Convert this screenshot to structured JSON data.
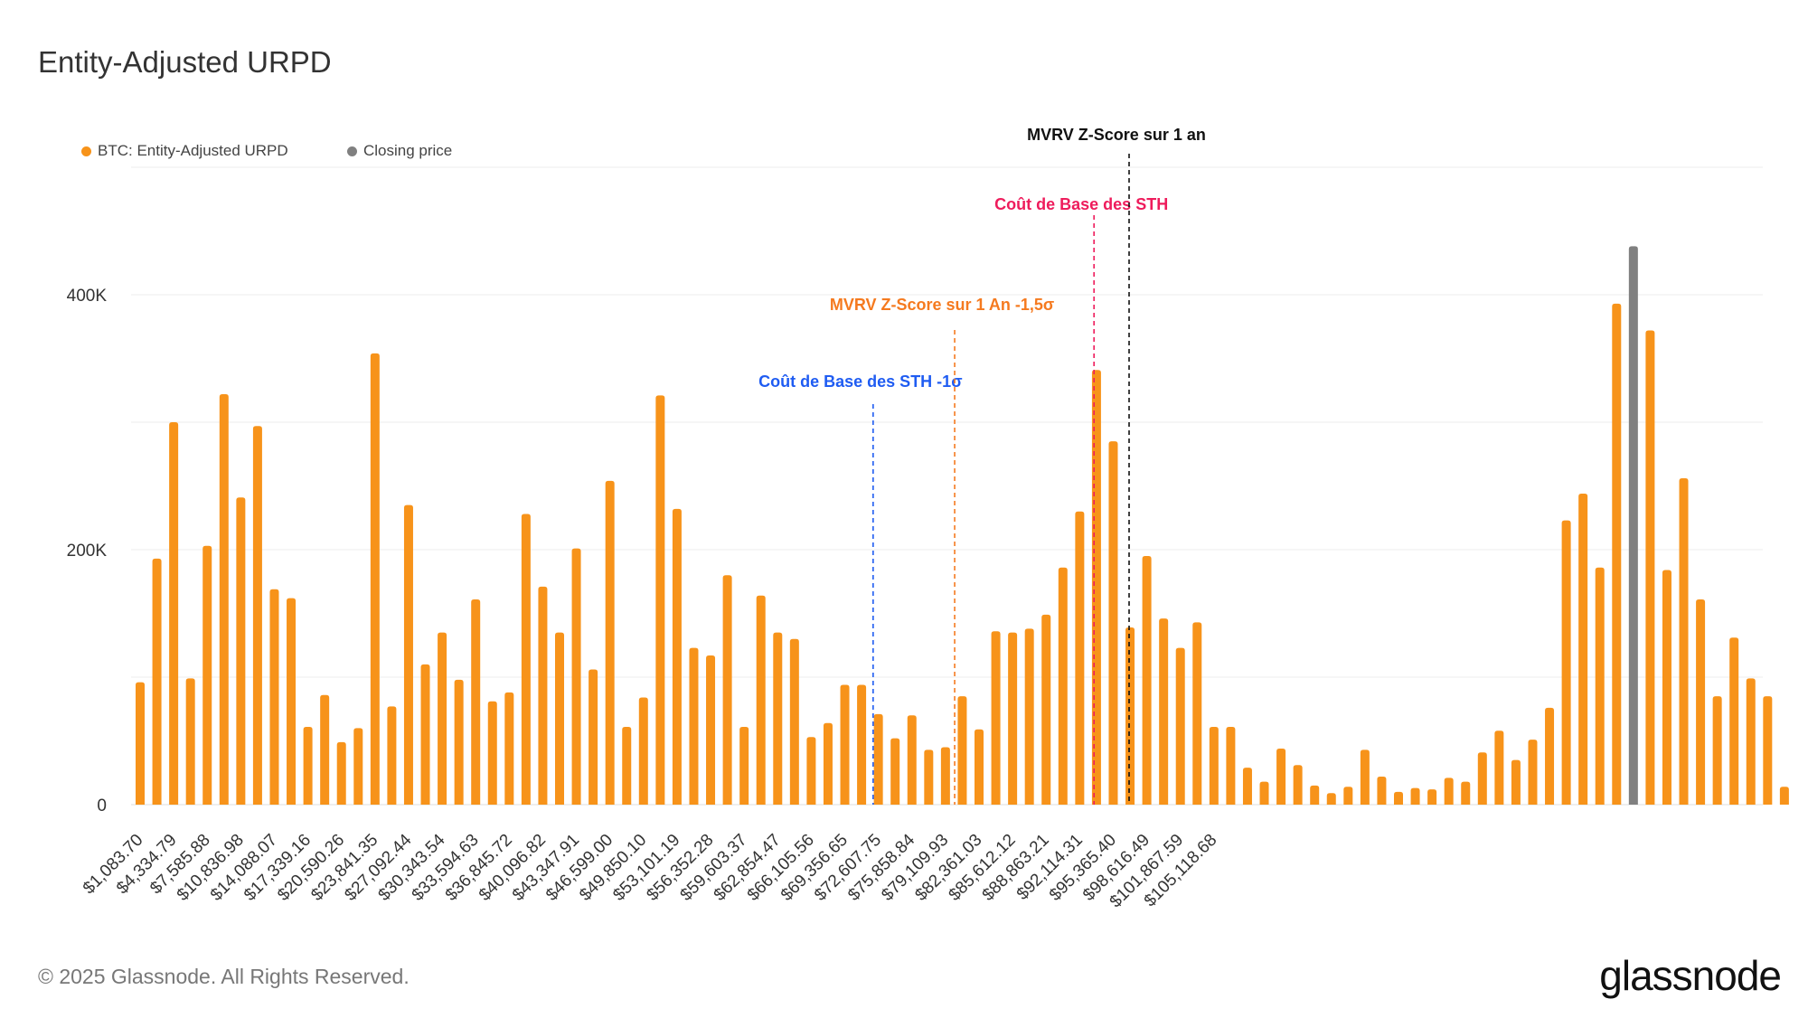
{
  "title": "Entity-Adjusted URPD",
  "footer": "© 2025 Glassnode. All Rights Reserved.",
  "logo_text": "glassnode",
  "colors": {
    "bar": "#F7931A",
    "closing": "#808080",
    "grid": "#eeeeee",
    "axis_text": "#333333"
  },
  "legend": [
    {
      "label": "BTC: Entity-Adjusted URPD",
      "color": "#F7931A"
    },
    {
      "label": "Closing price",
      "color": "#808080"
    }
  ],
  "chart_data": {
    "type": "bar",
    "y_ticks": [
      "0",
      "200K",
      "400K"
    ],
    "y_tick_values": [
      0,
      200000,
      400000
    ],
    "ylim": [
      0,
      500000
    ],
    "x_tick_labels": [
      "$1,083.70",
      "$4,334.79",
      "$7,585.88",
      "$10,836.98",
      "$14,088.07",
      "$17,339.16",
      "$20,590.26",
      "$23,841.35",
      "$27,092.44",
      "$30,343.54",
      "$33,594.63",
      "$36,845.72",
      "$40,096.82",
      "$43,347.91",
      "$46,599.00",
      "$49,850.10",
      "$53,101.19",
      "$56,352.28",
      "$59,603.37",
      "$62,854.47",
      "$66,105.56",
      "$69,356.65",
      "$72,607.75",
      "$75,858.84",
      "$79,109.93",
      "$82,361.03",
      "$85,612.12",
      "$88,863.21",
      "$92,114.31",
      "$95,365.40",
      "$98,616.49",
      "$101,867.59",
      "$105,118.68"
    ],
    "values": [
      96000,
      193000,
      300000,
      99000,
      203000,
      322000,
      241000,
      297000,
      169000,
      162000,
      61000,
      86000,
      49000,
      60000,
      354000,
      77000,
      235000,
      110000,
      135000,
      98000,
      161000,
      81000,
      88000,
      228000,
      171000,
      135000,
      201000,
      106000,
      254000,
      61000,
      84000,
      321000,
      232000,
      123000,
      117000,
      180000,
      61000,
      164000,
      135000,
      130000,
      53000,
      64000,
      94000,
      94000,
      71000,
      52000,
      70000,
      43000,
      45000,
      85000,
      59000,
      136000,
      135000,
      138000,
      149000,
      186000,
      230000,
      341000,
      285000,
      139000,
      195000,
      146000,
      123000,
      143000,
      61000,
      61000,
      29000,
      18000,
      44000,
      31000,
      15000,
      9000,
      14000,
      43000,
      22000,
      10000,
      13000,
      12000,
      21000,
      18000,
      41000,
      58000,
      35000,
      51000,
      76000,
      223000,
      244000,
      186000,
      393000,
      438000,
      372000,
      184000,
      256000,
      161000,
      85000,
      131000,
      99000,
      85000,
      14000
    ],
    "closing_price_bin_index": 89,
    "annotations": [
      {
        "label": "Coût de Base des STH -1σ",
        "price": 72100,
        "color": "#1f5cf2"
      },
      {
        "label": "MVRV Z-Score sur 1 An -1,5σ",
        "price": 80000,
        "color": "#f57a1f"
      },
      {
        "label": "Coût de Base des STH",
        "price": 93500,
        "color": "#ee1c5c"
      },
      {
        "label": "MVRV Z-Score sur 1 an",
        "price": 96900,
        "color": "#111111"
      }
    ]
  }
}
